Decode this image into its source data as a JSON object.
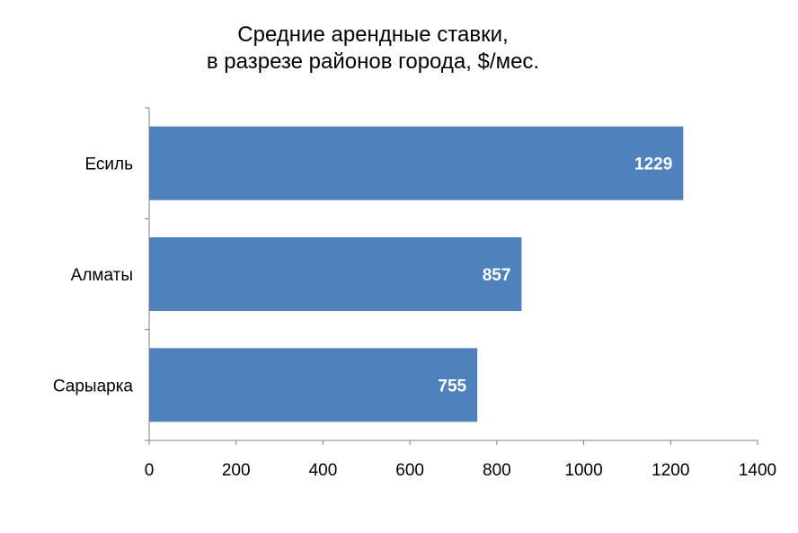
{
  "chart_data": {
    "type": "bar",
    "orientation": "horizontal",
    "title": [
      "Средние арендные ставки,",
      "в разрезе районов города, $/мес."
    ],
    "categories": [
      "Есиль",
      "Алматы",
      "Сарыарка"
    ],
    "values": [
      1229,
      857,
      755
    ],
    "xlim": [
      0,
      1400
    ],
    "x_ticks": [
      0,
      200,
      400,
      600,
      800,
      1000,
      1200,
      1400
    ],
    "xlabel": "",
    "ylabel": "",
    "grid": false,
    "legend": "none",
    "bar_color": "#4F81BD",
    "data_label_color": "#FFFFFF"
  }
}
